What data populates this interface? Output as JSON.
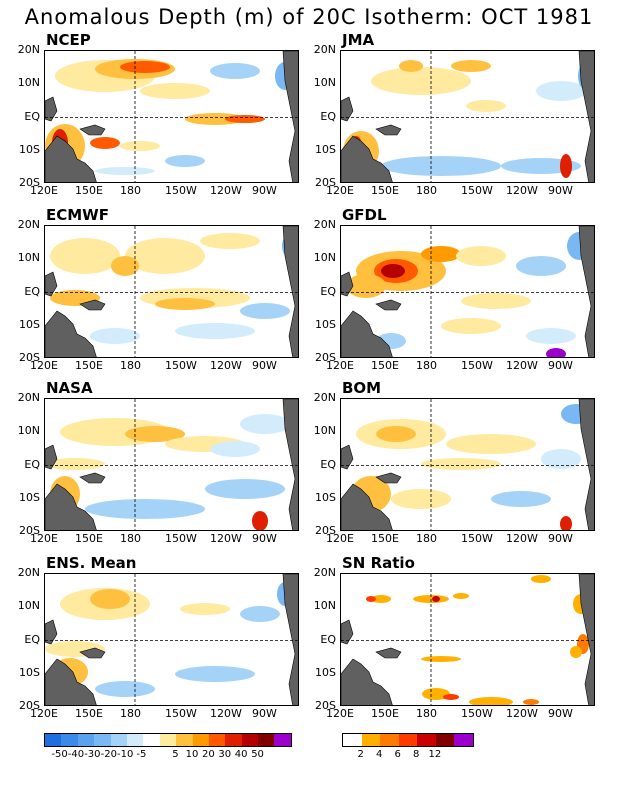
{
  "title": "Anomalous Depth (m) of 20C Isotherm: OCT 1981",
  "panels": [
    {
      "name": "NCEP"
    },
    {
      "name": "JMA"
    },
    {
      "name": "ECMWF"
    },
    {
      "name": "GFDL"
    },
    {
      "name": "NASA"
    },
    {
      "name": "BOM"
    },
    {
      "name": "ENS. Mean"
    },
    {
      "name": "SN Ratio"
    }
  ],
  "axes": {
    "y_ticks": [
      "20N",
      "10N",
      "EQ",
      "10S",
      "20S"
    ],
    "x_ticks": [
      "120E",
      "150E",
      "180",
      "150W",
      "120W",
      "90W"
    ]
  },
  "colorbar_anom": {
    "labels": [
      "-50",
      "-40",
      "-30",
      "-20",
      "-10",
      "-5",
      "5",
      "10",
      "20",
      "30",
      "40",
      "50"
    ],
    "colors": [
      "#1e6fe0",
      "#3a8ae8",
      "#5aa2ee",
      "#7ab8f3",
      "#a5d3f7",
      "#d3ecfb",
      "#ffffff",
      "#ffeaa0",
      "#ffc040",
      "#ff9a00",
      "#ff5a00",
      "#e01e00",
      "#b40000",
      "#800000",
      "#9b00cc"
    ]
  },
  "colorbar_sn": {
    "labels": [
      "2",
      "4",
      "6",
      "8",
      "12"
    ],
    "colors": [
      "#ffffff",
      "#ffb000",
      "#ff7a00",
      "#ff3a00",
      "#c80000",
      "#800000",
      "#9b00cc"
    ]
  },
  "colors": {
    "land": "#606060",
    "grid": "#000000"
  }
}
